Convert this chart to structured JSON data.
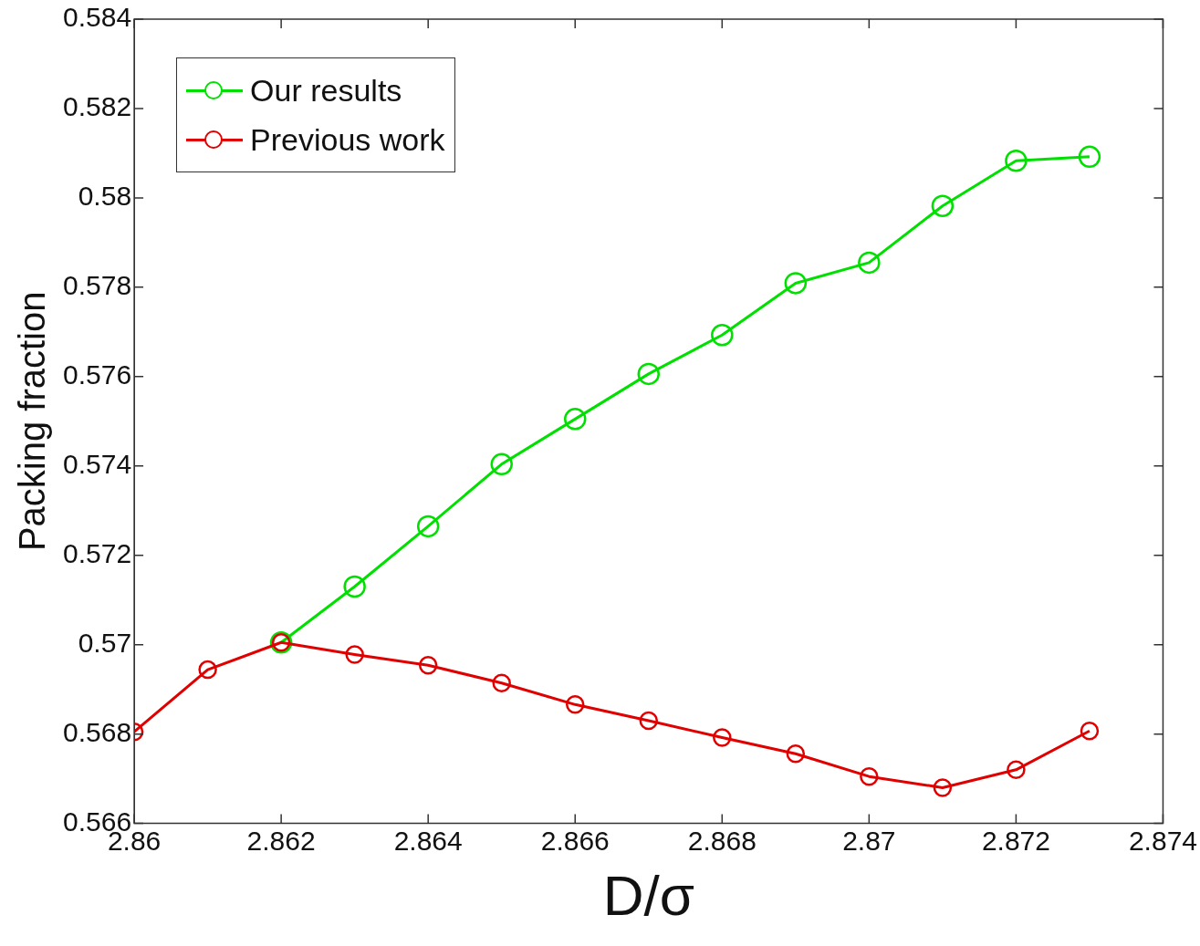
{
  "chart_data": {
    "type": "line",
    "xlabel": "D/σ",
    "ylabel": "Packing fraction",
    "x": [
      2.86,
      2.861,
      2.862,
      2.863,
      2.864,
      2.865,
      2.866,
      2.867,
      2.868,
      2.869,
      2.87,
      2.871,
      2.872,
      2.873
    ],
    "series": [
      {
        "name": "Our results",
        "color": "#00e000",
        "values": [
          null,
          null,
          0.57005,
          0.5713,
          0.57265,
          0.57404,
          0.57505,
          0.57606,
          0.57693,
          0.57809,
          0.57855,
          0.57982,
          0.58083,
          0.58092
        ]
      },
      {
        "name": "Previous work",
        "color": "#e00000",
        "values": [
          0.56805,
          0.56944,
          0.57005,
          0.56978,
          0.56954,
          0.56914,
          0.56866,
          0.5683,
          0.56792,
          0.56756,
          0.56705,
          0.5668,
          0.5672,
          0.56807
        ]
      }
    ],
    "xlim": [
      2.86,
      2.874
    ],
    "xticks": [
      2.86,
      2.862,
      2.864,
      2.866,
      2.868,
      2.87,
      2.872,
      2.874
    ],
    "ylim": [
      0.566,
      0.584
    ],
    "yticks": [
      0.566,
      0.568,
      0.57,
      0.572,
      0.574,
      0.576,
      0.578,
      0.58,
      0.582,
      0.584
    ],
    "grid": false,
    "legend": "top left",
    "marker": "circle",
    "line_style": "solid"
  }
}
